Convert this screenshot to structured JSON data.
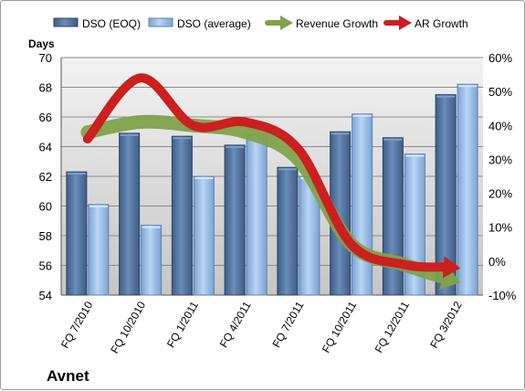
{
  "chart_data": {
    "type": "bar",
    "categories": [
      "FQ 7/2010",
      "FQ 10/2010",
      "FQ 1/2011",
      "FQ 4/2011",
      "FQ 7/2011",
      "FQ 10/2011",
      "FQ 12/2011",
      "FQ 3/2012"
    ],
    "series": [
      {
        "name": "DSO (EOQ)",
        "type": "bar",
        "axis": "left",
        "color": "#4a6b96",
        "values": [
          62.3,
          64.9,
          64.7,
          64.1,
          62.6,
          65.0,
          64.6,
          67.5
        ]
      },
      {
        "name": "DSO (average)",
        "type": "bar",
        "axis": "left",
        "color": "#8eb4e1",
        "values": [
          60.1,
          58.7,
          62.0,
          64.8,
          62.0,
          66.2,
          63.5,
          68.2
        ]
      },
      {
        "name": "Revenue Growth",
        "type": "line",
        "axis": "right",
        "color": "#7fa24a",
        "values": [
          38,
          41,
          40,
          38,
          30,
          5,
          -1,
          -6
        ]
      },
      {
        "name": "AR Growth",
        "type": "line",
        "axis": "right",
        "color": "#cc1f1f",
        "values": [
          36,
          54,
          40,
          41,
          33,
          5,
          -1,
          -2
        ]
      }
    ],
    "left_axis": {
      "label": "Days",
      "ylim": [
        54,
        70
      ],
      "ticks": [
        "54",
        "56",
        "58",
        "60",
        "62",
        "64",
        "66",
        "68",
        "70"
      ]
    },
    "right_axis": {
      "ylim": [
        -10,
        60
      ],
      "ticks": [
        "-10%",
        "0%",
        "10%",
        "20%",
        "30%",
        "40%",
        "50%",
        "60%"
      ]
    },
    "company": "Avnet",
    "legend_position": "top",
    "grid": true
  }
}
